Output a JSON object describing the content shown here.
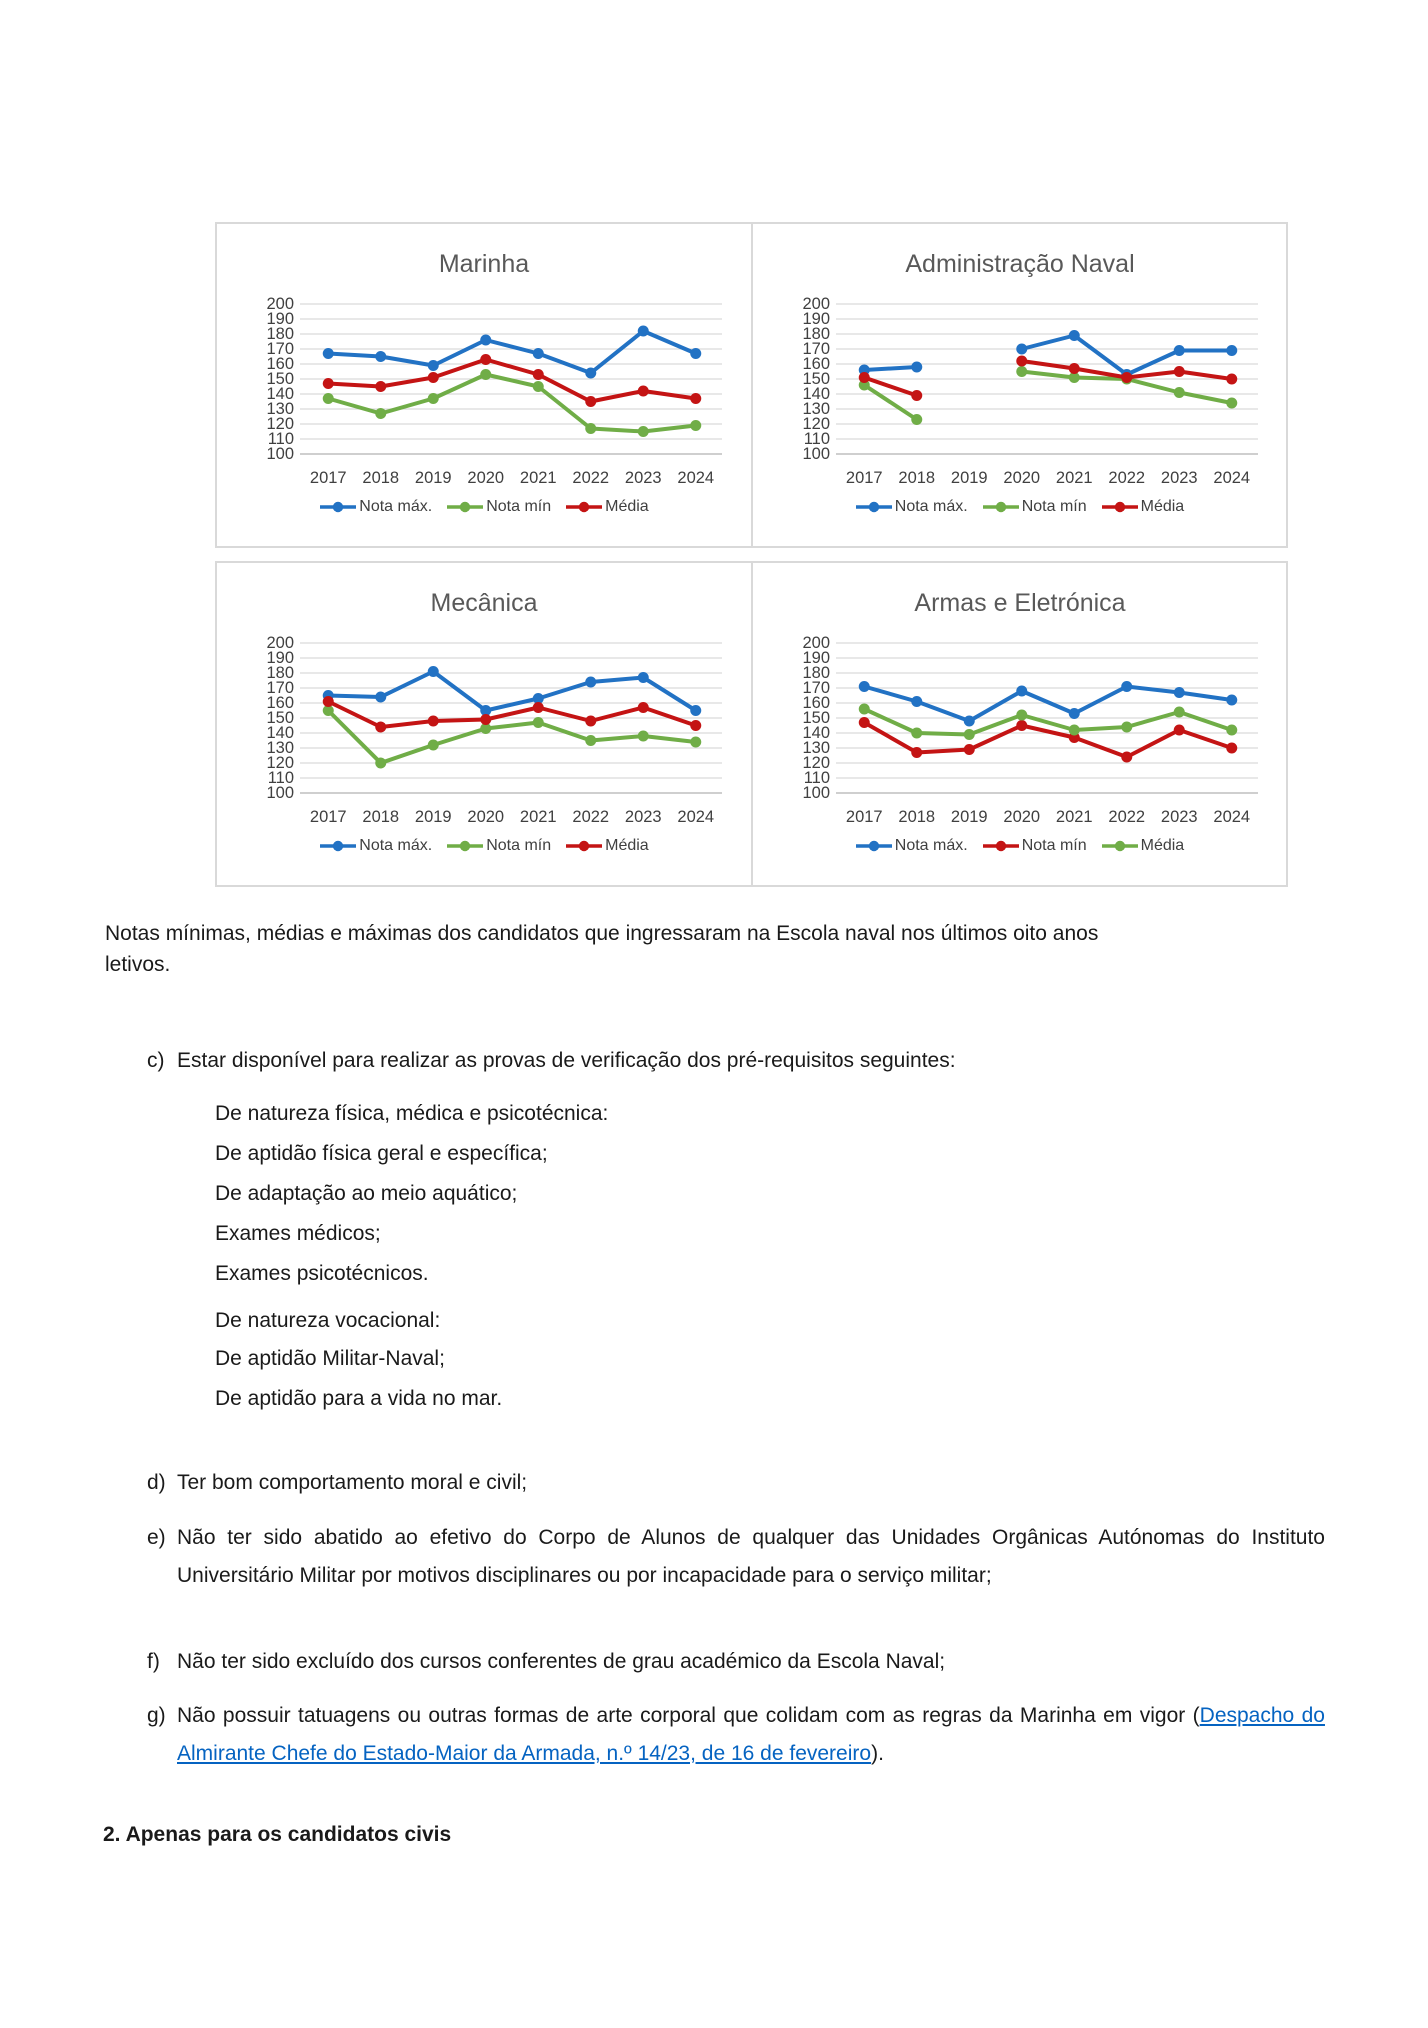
{
  "doc": {
    "caption_lines": [
      "Notas mínimas, médias e máximas dos candidatos que ingressaram na Escola naval nos últimos oito anos",
      "letivos."
    ],
    "item_c_label": "c)",
    "item_c": "Estar disponível para realizar as provas de verificação dos pré-requisitos seguintes:",
    "sub_items": [
      "De natureza física, médica e psicotécnica:",
      "De aptidão física geral e específica;",
      "De adaptação ao meio aquático;",
      "Exames médicos;",
      "Exames psicotécnicos.",
      "De natureza vocacional:",
      "De aptidão Militar-Naval;",
      "De aptidão para a vida no mar."
    ],
    "item_d_label": "d)",
    "item_d": "Ter bom comportamento moral e civil;",
    "item_e_label": "e)",
    "item_e": "Não ter sido abatido ao efetivo do Corpo de Alunos de qualquer das Unidades Orgânicas Autónomas do Instituto Universitário Militar por motivos disciplinares ou por incapacidade para o serviço militar;",
    "item_f_label": "f)",
    "item_f": "Não ter sido excluído dos cursos conferentes de grau académico da Escola Naval;",
    "item_g_label": "g)",
    "item_g_prefix": "Não possuir tatuagens ou outras formas de arte corporal que colidam com as regras da Marinha em vigor (",
    "item_g_link": "Despacho do Almirante Chefe do Estado-Maior da Armada, n.º 14/23, de 16 de fevereiro",
    "item_g_suffix": ").",
    "section_2": "2. Apenas para os candidatos civis"
  },
  "style_colors": {
    "blue": "#2272c4",
    "green": "#70ad47",
    "red": "#c41414",
    "grid": "#d9d9d9",
    "axis": "#bfbfbf",
    "tick_text": "#404040",
    "title_text": "#595959",
    "link": "#0563c1"
  },
  "chart_data": [
    {
      "type": "line",
      "title": "Marinha",
      "x": [
        "2017",
        "2018",
        "2019",
        "2020",
        "2021",
        "2022",
        "2023",
        "2024"
      ],
      "ylim": [
        100,
        200
      ],
      "ytick_step": 10,
      "grid": true,
      "legend_position": "bottom",
      "series": [
        {
          "name": "Nota máx.",
          "color": "#2272c4",
          "values": [
            167,
            165,
            159,
            176,
            167,
            154,
            182,
            167
          ]
        },
        {
          "name": "Nota mín",
          "color": "#70ad47",
          "values": [
            137,
            127,
            137,
            153,
            145,
            117,
            115,
            119
          ]
        },
        {
          "name": "Média",
          "color": "#c41414",
          "values": [
            147,
            145,
            151,
            163,
            153,
            135,
            142,
            137
          ]
        }
      ]
    },
    {
      "type": "line",
      "title": "Administração Naval",
      "x": [
        "2017",
        "2018",
        "2019",
        "2020",
        "2021",
        "2022",
        "2023",
        "2024"
      ],
      "ylim": [
        100,
        200
      ],
      "ytick_step": 10,
      "grid": true,
      "legend_position": "bottom",
      "series": [
        {
          "name": "Nota máx.",
          "color": "#2272c4",
          "values": [
            156,
            158,
            null,
            170,
            179,
            153,
            169,
            169
          ]
        },
        {
          "name": "Nota mín",
          "color": "#70ad47",
          "values": [
            146,
            123,
            null,
            155,
            151,
            150,
            141,
            134
          ]
        },
        {
          "name": "Média",
          "color": "#c41414",
          "values": [
            151,
            139,
            null,
            162,
            157,
            151,
            155,
            150
          ]
        }
      ]
    },
    {
      "type": "line",
      "title": "Mecânica",
      "x": [
        "2017",
        "2018",
        "2019",
        "2020",
        "2021",
        "2022",
        "2023",
        "2024"
      ],
      "ylim": [
        100,
        200
      ],
      "ytick_step": 10,
      "grid": true,
      "legend_position": "bottom",
      "series": [
        {
          "name": "Nota máx.",
          "color": "#2272c4",
          "values": [
            165,
            164,
            181,
            155,
            163,
            174,
            177,
            155
          ]
        },
        {
          "name": "Nota mín",
          "color": "#70ad47",
          "values": [
            155,
            120,
            132,
            143,
            147,
            135,
            138,
            134
          ]
        },
        {
          "name": "Média",
          "color": "#c41414",
          "values": [
            161,
            144,
            148,
            149,
            157,
            148,
            157,
            145
          ]
        }
      ]
    },
    {
      "type": "line",
      "title": "Armas e Eletrónica",
      "x": [
        "2017",
        "2018",
        "2019",
        "2020",
        "2021",
        "2022",
        "2023",
        "2024"
      ],
      "ylim": [
        100,
        200
      ],
      "ytick_step": 10,
      "grid": true,
      "legend_position": "bottom",
      "series": [
        {
          "name": "Nota máx.",
          "color": "#2272c4",
          "values": [
            171,
            161,
            148,
            168,
            153,
            171,
            167,
            162
          ]
        },
        {
          "name": "Nota mín",
          "color": "#c41414",
          "values": [
            147,
            127,
            129,
            145,
            137,
            124,
            142,
            130
          ]
        },
        {
          "name": "Média",
          "color": "#70ad47",
          "values": [
            156,
            140,
            139,
            152,
            142,
            144,
            154,
            142
          ]
        }
      ]
    }
  ]
}
